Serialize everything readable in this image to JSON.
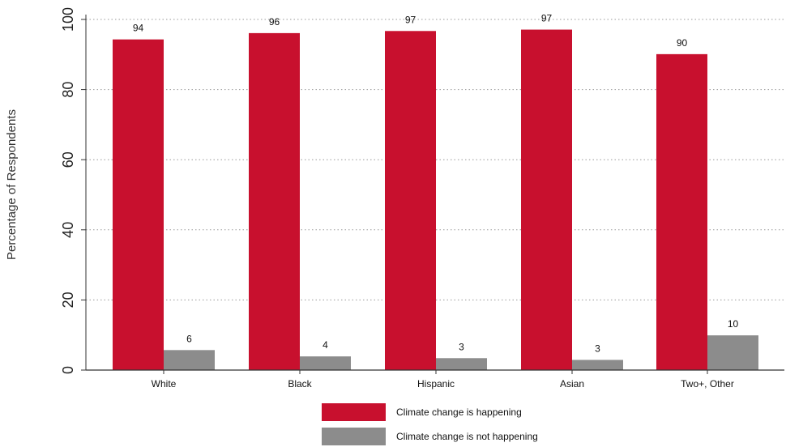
{
  "chart_data": {
    "type": "bar",
    "title": "",
    "xlabel": "",
    "ylabel": "Percentage of Respondents",
    "ylim": [
      0,
      100
    ],
    "yticks": [
      0,
      20,
      40,
      60,
      80,
      100
    ],
    "grid": true,
    "legend_position": "bottom",
    "categories": [
      "White",
      "Black",
      "Hispanic",
      "Asian",
      "Two+, Other"
    ],
    "series": [
      {
        "name": "Climate change is happening",
        "color": "#c8102e",
        "values": [
          94.3,
          96.1,
          96.7,
          97.1,
          90.1
        ],
        "labels": [
          "94",
          "96",
          "97",
          "97",
          "90"
        ]
      },
      {
        "name": "Climate change is not happening",
        "color": "#8c8c8c",
        "values": [
          5.7,
          3.9,
          3.4,
          2.9,
          9.9
        ],
        "labels": [
          "6",
          "4",
          "3",
          "3",
          "10"
        ]
      }
    ]
  }
}
